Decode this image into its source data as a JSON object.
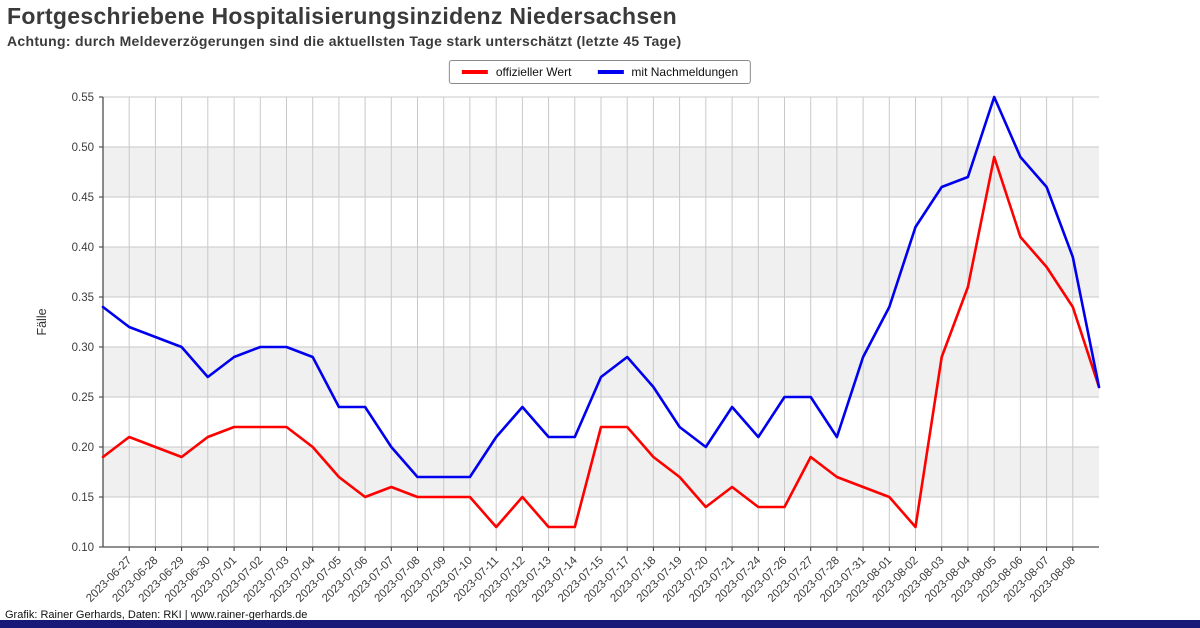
{
  "title": "Fortgeschriebene Hospitalisierungsinzidenz Niedersachsen",
  "subtitle": "Achtung: durch Meldeverzögerungen sind die aktuellsten Tage stark unterschätzt (letzte 45 Tage)",
  "footer": "Grafik: Rainer Gerhards, Daten: RKI | www.rainer-gerhards.de",
  "legend": [
    {
      "label": "offizieller Wert",
      "color": "#ff0000"
    },
    {
      "label": "mit Nachmeldungen",
      "color": "#0000ee"
    }
  ],
  "colors": {
    "red": "#ff0000",
    "blue": "#0000ee",
    "band": "#f0f0f0",
    "grid": "#c9c9c9",
    "axis": "#333333",
    "spine": "#4d4d4d",
    "bottom_bar": "#181878"
  },
  "chart_data": {
    "type": "line",
    "title": "Fortgeschriebene Hospitalisierungsinzidenz Niedersachsen",
    "subtitle": "Achtung: durch Meldeverzögerungen sind die aktuellsten Tage stark unterschätzt (letzte 45 Tage)",
    "xlabel": "",
    "ylabel": "Fälle",
    "ylim": [
      0.1,
      0.55
    ],
    "ytick_step": 0.05,
    "grid": true,
    "legend_position": "top-center",
    "shaded_bands": [
      [
        0.15,
        0.2
      ],
      [
        0.25,
        0.3
      ],
      [
        0.35,
        0.4
      ],
      [
        0.45,
        0.5
      ]
    ],
    "unlabeled_lead_points": 1,
    "unlabeled_trail_points": 1,
    "categories": [
      "2023-06-27",
      "2023-06-28",
      "2023-06-29",
      "2023-06-30",
      "2023-07-01",
      "2023-07-02",
      "2023-07-03",
      "2023-07-04",
      "2023-07-05",
      "2023-07-06",
      "2023-07-07",
      "2023-07-08",
      "2023-07-09",
      "2023-07-10",
      "2023-07-11",
      "2023-07-12",
      "2023-07-13",
      "2023-07-14",
      "2023-07-15",
      "2023-07-17",
      "2023-07-18",
      "2023-07-19",
      "2023-07-20",
      "2023-07-21",
      "2023-07-24",
      "2023-07-26",
      "2023-07-27",
      "2023-07-28",
      "2023-07-31",
      "2023-08-01",
      "2023-08-02",
      "2023-08-03",
      "2023-08-04",
      "2023-08-05",
      "2023-08-06",
      "2023-08-07",
      "2023-08-08"
    ],
    "series": [
      {
        "name": "offizieller Wert",
        "color": "#ff0000",
        "values": [
          0.19,
          0.21,
          0.2,
          0.19,
          0.21,
          0.22,
          0.22,
          0.22,
          0.2,
          0.17,
          0.15,
          0.16,
          0.15,
          0.15,
          0.15,
          0.12,
          0.15,
          0.12,
          0.12,
          0.22,
          0.22,
          0.19,
          0.17,
          0.14,
          0.16,
          0.14,
          0.14,
          0.19,
          0.17,
          0.16,
          0.15,
          0.12,
          0.29,
          0.36,
          0.49,
          0.41,
          0.38,
          0.34,
          0.26
        ]
      },
      {
        "name": "mit Nachmeldungen",
        "color": "#0000ee",
        "values": [
          0.34,
          0.32,
          0.31,
          0.3,
          0.27,
          0.29,
          0.3,
          0.3,
          0.29,
          0.24,
          0.24,
          0.2,
          0.17,
          0.17,
          0.17,
          0.21,
          0.24,
          0.21,
          0.21,
          0.27,
          0.29,
          0.26,
          0.22,
          0.2,
          0.24,
          0.21,
          0.25,
          0.25,
          0.21,
          0.29,
          0.34,
          0.42,
          0.46,
          0.47,
          0.55,
          0.49,
          0.46,
          0.39,
          0.26
        ]
      }
    ]
  }
}
